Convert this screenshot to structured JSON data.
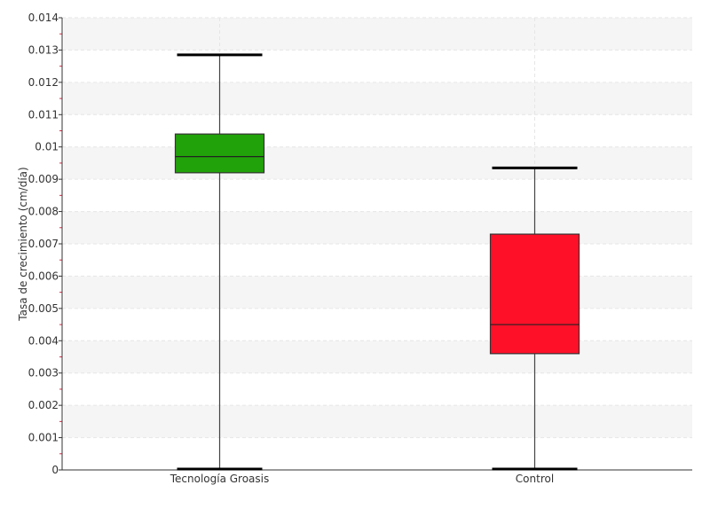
{
  "chart_data": {
    "type": "box",
    "ylabel": "Tasa de crecimiento (cm/día)",
    "ylim": [
      0,
      0.014
    ],
    "yticks": [
      "0",
      "0.001",
      "0.002",
      "0.003",
      "0.004",
      "0.005",
      "0.006",
      "0.007",
      "0.008",
      "0.009",
      "0.01",
      "0.011",
      "0.012",
      "0.013",
      "0.014"
    ],
    "grid": true,
    "categories": [
      "Tecnología Groasis",
      "Control"
    ],
    "boxes": [
      {
        "name": "Tecnología Groasis",
        "min": 0.0,
        "q1": 0.0092,
        "median": 0.0097,
        "q3": 0.0104,
        "max": 0.01285,
        "color": "#22a20a"
      },
      {
        "name": "Control",
        "min": 0.0,
        "q1": 0.0036,
        "median": 0.0045,
        "q3": 0.0073,
        "max": 0.00935,
        "color": "#ff1029"
      }
    ]
  }
}
